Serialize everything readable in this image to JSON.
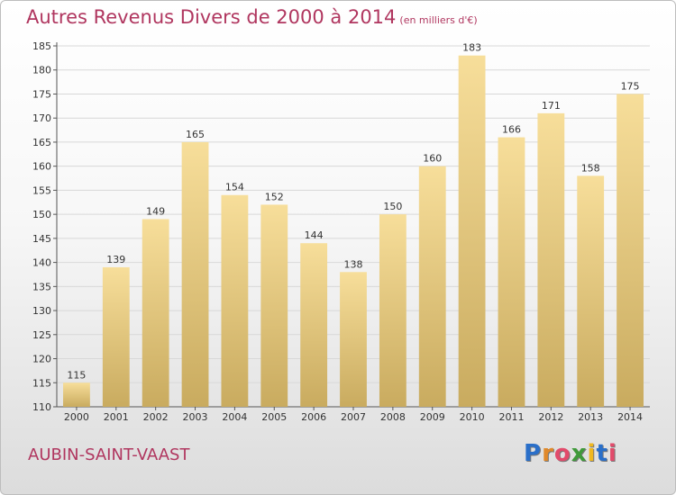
{
  "header": {
    "title": "Autres Revenus Divers de 2000 à 2014",
    "subtitle": "(en milliers d'€)"
  },
  "footer": {
    "commune": "AUBIN-SAINT-VAAST",
    "logo_letters": [
      "P",
      "r",
      "o",
      "x",
      "i",
      "t",
      "i"
    ],
    "logo_colors": [
      "#2a6fc9",
      "#e0892a",
      "#e24b6b",
      "#3f9a3a",
      "#f0b81f",
      "#2a6fc9",
      "#e24b6b"
    ]
  },
  "colors": {
    "bar_top": "#f7de9a",
    "bar_bottom": "#c9ab5f",
    "grid": "#d8d8d8",
    "title": "#b0365f"
  },
  "chart_data": {
    "type": "bar",
    "categories": [
      "2000",
      "2001",
      "2002",
      "2003",
      "2004",
      "2005",
      "2006",
      "2007",
      "2008",
      "2009",
      "2010",
      "2011",
      "2012",
      "2013",
      "2014"
    ],
    "values": [
      115,
      139,
      149,
      165,
      154,
      152,
      144,
      138,
      150,
      160,
      183,
      166,
      171,
      158,
      175
    ],
    "ylim": [
      110,
      185
    ],
    "yticks": [
      110,
      115,
      120,
      125,
      130,
      135,
      140,
      145,
      150,
      155,
      160,
      165,
      170,
      175,
      180,
      185
    ],
    "grid": true,
    "legend": "none"
  }
}
